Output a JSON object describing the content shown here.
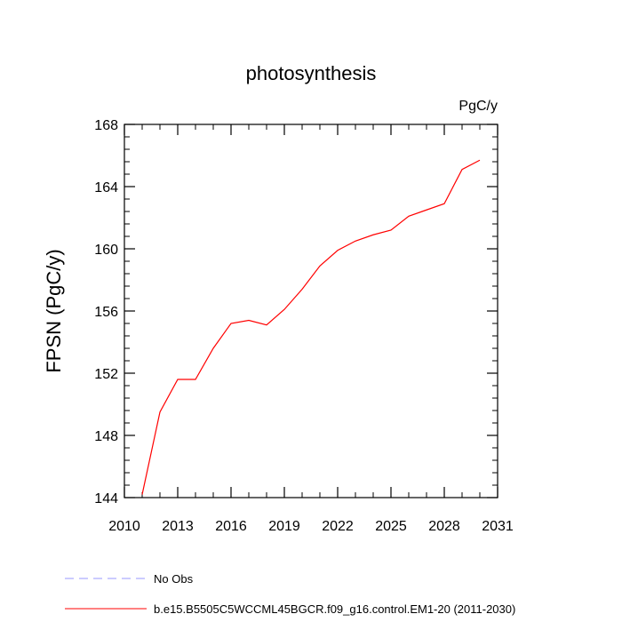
{
  "chart_data": {
    "type": "line",
    "title": "photosynthesis",
    "units_label": "PgC/y",
    "ylabel": "FPSN  (PgC/y)",
    "xlabel": "",
    "xlim": [
      2010,
      2031
    ],
    "ylim": [
      144,
      168
    ],
    "x_ticks": [
      2010,
      2013,
      2016,
      2019,
      2022,
      2025,
      2028,
      2031
    ],
    "y_ticks": [
      144,
      148,
      152,
      156,
      160,
      164,
      168
    ],
    "grid": false,
    "series": [
      {
        "name": "b.e15.B5505C5WCCML45BGCR.f09_g16.control.EM1-20 (2011-2030)",
        "color": "#ff0000",
        "x": [
          2011,
          2012,
          2013,
          2014,
          2015,
          2016,
          2017,
          2018,
          2019,
          2020,
          2021,
          2022,
          2023,
          2024,
          2025,
          2026,
          2027,
          2028,
          2029,
          2030
        ],
        "y": [
          144.2,
          149.5,
          151.6,
          151.6,
          153.6,
          155.2,
          155.4,
          155.1,
          156.1,
          157.4,
          158.9,
          159.9,
          160.5,
          160.9,
          161.2,
          162.1,
          162.5,
          162.9,
          165.1,
          165.7
        ]
      }
    ],
    "legend": {
      "placement": "bottom-left",
      "entries": [
        {
          "label": "No Obs",
          "color": "#9999ff",
          "style": "dashed"
        },
        {
          "label": "b.e15.B5505C5WCCML45BGCR.f09_g16.control.EM1-20 (2011-2030)",
          "color": "#ff0000",
          "style": "solid"
        }
      ]
    }
  }
}
